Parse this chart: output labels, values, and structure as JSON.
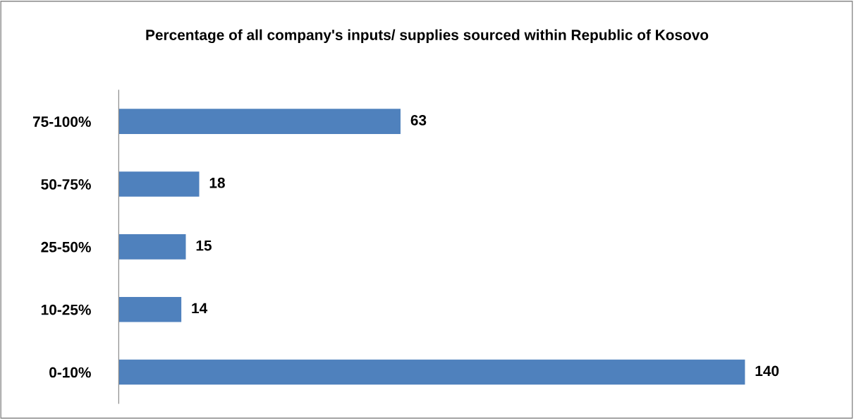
{
  "chart_data": {
    "type": "bar",
    "orientation": "horizontal",
    "title": "Percentage of all company's inputs/ supplies sourced within Republic of Kosovo",
    "categories": [
      "75-100%",
      "50-75%",
      "25-50%",
      "10-25%",
      "0-10%"
    ],
    "values": [
      63,
      18,
      15,
      14,
      140
    ],
    "color": "#4f81bd",
    "data_labels": true,
    "grid": false,
    "legend": false
  }
}
